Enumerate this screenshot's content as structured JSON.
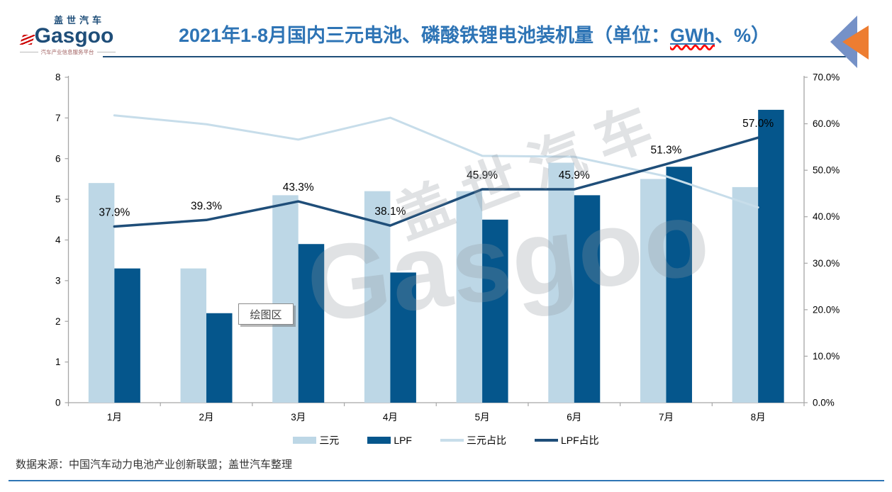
{
  "header": {
    "logo": {
      "cn": "盖世汽车",
      "en": "Gasgoo",
      "tagline": "汽车产业信息服务平台"
    },
    "title_main": "2021年1-8月国内三元电池、磷酸铁锂电池装机量",
    "title_unit_prefix": "（单位：",
    "title_unit_gwh": "GWh",
    "title_unit_suffix": "、%）"
  },
  "plot_area_tooltip": "绘图区",
  "chart_data": {
    "type": "combo-bar-line",
    "categories": [
      "1月",
      "2月",
      "3月",
      "4月",
      "5月",
      "6月",
      "7月",
      "8月"
    ],
    "bar_series": [
      {
        "name": "三元",
        "color": "#BDD7E6",
        "axis": "left",
        "values": [
          5.4,
          3.3,
          5.1,
          5.2,
          5.2,
          5.9,
          5.5,
          5.3
        ]
      },
      {
        "name": "LPF",
        "color": "#05568C",
        "axis": "left",
        "values": [
          3.3,
          2.2,
          3.9,
          3.2,
          4.5,
          5.1,
          5.8,
          7.2
        ]
      }
    ],
    "line_series": [
      {
        "name": "三元占比",
        "color": "#C7DDEA",
        "axis": "right",
        "width": 3,
        "values": [
          61.8,
          59.9,
          56.6,
          61.3,
          53.1,
          52.9,
          48.7,
          42.0
        ],
        "labels": null
      },
      {
        "name": "LPF占比",
        "color": "#1F4E79",
        "axis": "right",
        "width": 3.5,
        "values": [
          37.9,
          39.3,
          43.3,
          38.1,
          45.9,
          45.9,
          51.3,
          57.0
        ],
        "labels": [
          "37.9%",
          "39.3%",
          "43.3%",
          "38.1%",
          "45.9%",
          "45.9%",
          "51.3%",
          "57.0%"
        ]
      }
    ],
    "left_axis": {
      "min": 0,
      "max": 8,
      "step": 1,
      "ticks": [
        "0",
        "1",
        "2",
        "3",
        "4",
        "5",
        "6",
        "7",
        "8"
      ]
    },
    "right_axis": {
      "min": 0,
      "max": 70,
      "step": 10,
      "ticks": [
        "0.0%",
        "10.0%",
        "20.0%",
        "30.0%",
        "40.0%",
        "50.0%",
        "60.0%",
        "70.0%"
      ]
    },
    "grid": false,
    "legend_position": "bottom"
  },
  "legend": {
    "items": [
      {
        "label": "三元",
        "swatch": "rect",
        "color": "#BDD7E6"
      },
      {
        "label": "LPF",
        "swatch": "rect",
        "color": "#05568C"
      },
      {
        "label": "三元占比",
        "swatch": "line",
        "color": "#C7DDEA"
      },
      {
        "label": "LPF占比",
        "swatch": "line",
        "color": "#1F4E79"
      }
    ]
  },
  "footer": {
    "source": "数据来源：中国汽车动力电池产业创新联盟；盖世汽车整理"
  },
  "colors": {
    "title": "#2E74B5",
    "title_rule": "#1F4E79",
    "footer_rule": "#2E75B5",
    "axis": "#A6A6A6",
    "tick_label": "#000000",
    "data_label": "#000000",
    "corner_triangle_blue": "#7591C7",
    "corner_triangle_orange": "#ED7D31"
  }
}
